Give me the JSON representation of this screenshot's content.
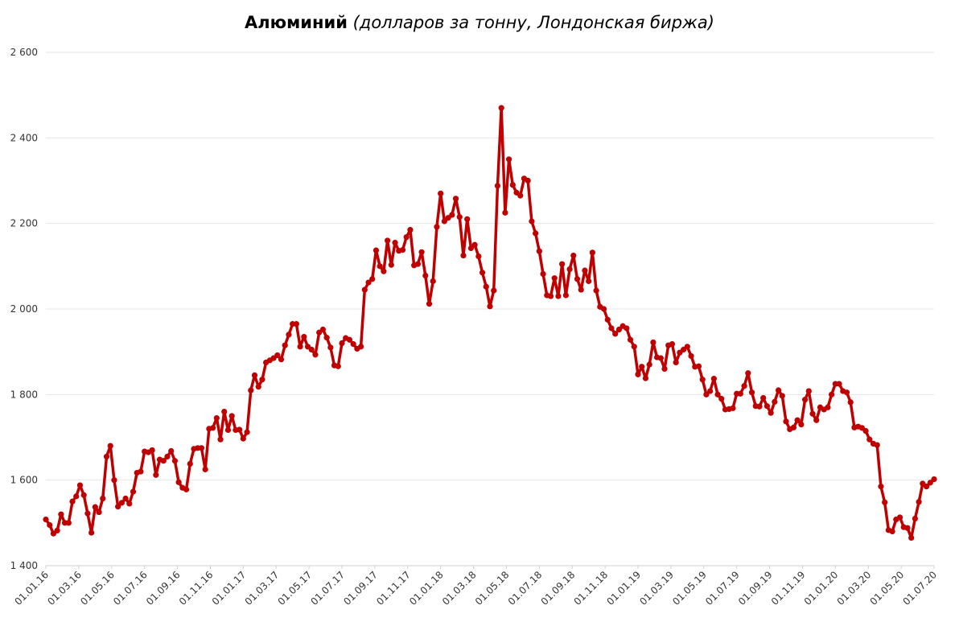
{
  "chart_data": {
    "type": "line",
    "title": "Алюминий",
    "subtitle": "(долларов за тонну, Лондонская биржа)",
    "xlabel": "",
    "ylabel": "",
    "ylim": [
      1400,
      2600
    ],
    "y_ticks": [
      1400,
      1600,
      1800,
      2000,
      2200,
      2400,
      2600
    ],
    "y_tick_labels": [
      "1 400",
      "1 600",
      "1 800",
      "2 000",
      "2 200",
      "2 400",
      "2 600"
    ],
    "x_tick_labels": [
      "01.01.16",
      "01.03.16",
      "01.05.16",
      "01.07.16",
      "01.09.16",
      "01.11.16",
      "01.01.17",
      "01.03.17",
      "01.05.17",
      "01.07.17",
      "01.09.17",
      "01.11.17",
      "01.01.18",
      "01.03.18",
      "01.05.18",
      "01.07.18",
      "01.09.18",
      "01.11.18",
      "01.01.19",
      "01.03.19",
      "01.05.19",
      "01.07.19",
      "01.09.19",
      "01.11.19",
      "01.01.20",
      "01.03.20",
      "01.05.20",
      "01.07.20"
    ],
    "grid": true,
    "legend": "none",
    "line_color": "#C00000",
    "series": [
      {
        "values": [
          1508,
          1495,
          1475,
          1482,
          1520,
          1500,
          1500,
          1550,
          1562,
          1588,
          1565,
          1522,
          1477,
          1537,
          1525,
          1557,
          1655,
          1680,
          1600,
          1538,
          1547,
          1557,
          1545,
          1573,
          1617,
          1620,
          1667,
          1665,
          1670,
          1612,
          1648,
          1645,
          1655,
          1668,
          1645,
          1595,
          1582,
          1578,
          1638,
          1673,
          1675,
          1675,
          1625,
          1720,
          1722,
          1745,
          1695,
          1760,
          1717,
          1750,
          1717,
          1718,
          1697,
          1712,
          1810,
          1845,
          1818,
          1835,
          1875,
          1880,
          1885,
          1892,
          1882,
          1915,
          1940,
          1965,
          1965,
          1912,
          1935,
          1912,
          1905,
          1893,
          1945,
          1952,
          1933,
          1910,
          1868,
          1866,
          1920,
          1932,
          1928,
          1918,
          1907,
          1912,
          2045,
          2062,
          2070,
          2137,
          2100,
          2088,
          2160,
          2103,
          2155,
          2136,
          2138,
          2168,
          2185,
          2102,
          2105,
          2133,
          2078,
          2012,
          2065,
          2192,
          2270,
          2205,
          2213,
          2220,
          2258,
          2215,
          2125,
          2210,
          2142,
          2150,
          2123,
          2085,
          2052,
          2006,
          2043,
          2288,
          2470,
          2225,
          2350,
          2290,
          2272,
          2265,
          2305,
          2300,
          2205,
          2177,
          2135,
          2082,
          2032,
          2030,
          2072,
          2030,
          2105,
          2032,
          2093,
          2125,
          2070,
          2045,
          2090,
          2065,
          2132,
          2043,
          2005,
          2000,
          1975,
          1955,
          1942,
          1952,
          1960,
          1955,
          1928,
          1912,
          1847,
          1865,
          1838,
          1870,
          1922,
          1887,
          1885,
          1860,
          1915,
          1918,
          1875,
          1898,
          1905,
          1912,
          1890,
          1865,
          1866,
          1835,
          1800,
          1808,
          1837,
          1800,
          1790,
          1765,
          1766,
          1768,
          1802,
          1802,
          1820,
          1850,
          1805,
          1773,
          1772,
          1792,
          1773,
          1757,
          1783,
          1810,
          1797,
          1737,
          1719,
          1723,
          1740,
          1730,
          1788,
          1808,
          1755,
          1740,
          1770,
          1765,
          1770,
          1800,
          1825,
          1825,
          1808,
          1805,
          1782,
          1723,
          1725,
          1722,
          1715,
          1695,
          1685,
          1682,
          1585,
          1548,
          1483,
          1480,
          1508,
          1513,
          1490,
          1488,
          1465,
          1510,
          1549,
          1592,
          1585,
          1594,
          1602
        ]
      }
    ]
  }
}
